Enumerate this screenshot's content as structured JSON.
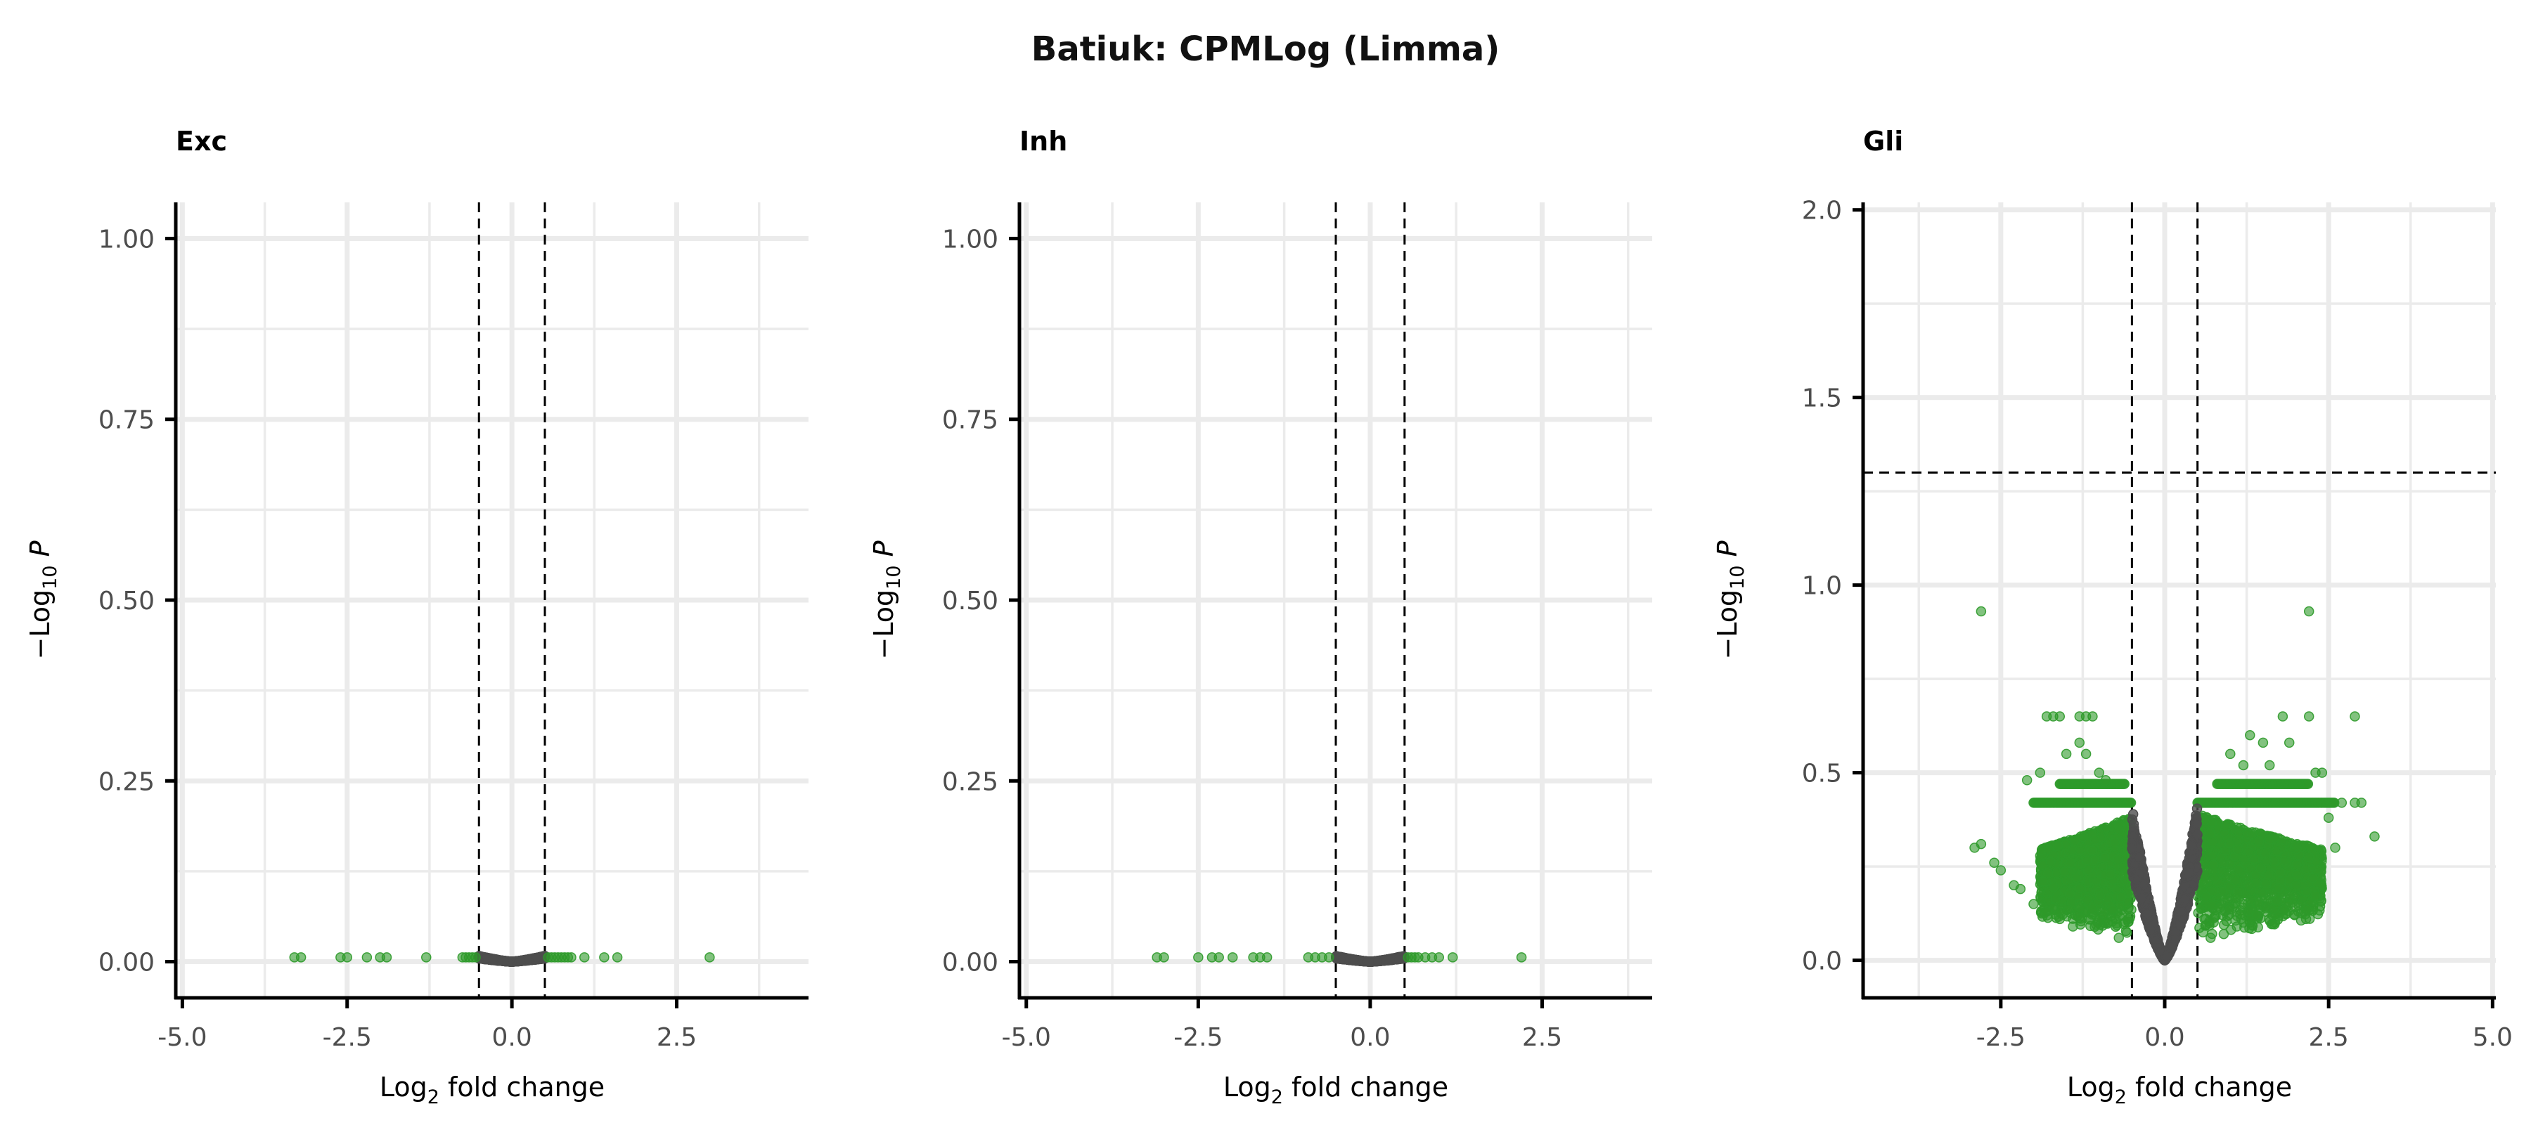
{
  "title": "Batiuk: CPMLog (Limma)",
  "colors": {
    "significant": "#2e9a2a",
    "nonsignificant": "#4d4d4d",
    "grid": "#ebebeb",
    "axis": "#000000"
  },
  "chart_data": [
    {
      "type": "scatter",
      "panel": "Exc",
      "xlabel_main": "Log",
      "xlabel_sub": "2",
      "xlabel_tail": " fold change",
      "ylabel_main": "−Log",
      "ylabel_sub": "10",
      "ylabel_tail": " P",
      "xlim": [
        -5.1,
        4.5
      ],
      "ylim": [
        -0.05,
        1.05
      ],
      "xticks": [
        -5.0,
        -2.5,
        0.0,
        2.5
      ],
      "xtick_labels": [
        "-5.0",
        "-2.5",
        "0.0",
        "2.5"
      ],
      "yticks": [
        0.0,
        0.25,
        0.5,
        0.75,
        1.0
      ],
      "ytick_labels": [
        "0.00",
        "0.25",
        "0.50",
        "0.75",
        "1.00"
      ],
      "fc_cutoff": [
        -0.5,
        0.5
      ],
      "p_cutoff": 1.3,
      "sig_points": [
        [
          -3.3,
          0.006
        ],
        [
          -3.2,
          0.006
        ],
        [
          -2.6,
          0.006
        ],
        [
          -2.5,
          0.006
        ],
        [
          -2.2,
          0.006
        ],
        [
          -2.0,
          0.006
        ],
        [
          -1.9,
          0.006
        ],
        [
          -1.3,
          0.006
        ],
        [
          -0.75,
          0.006
        ],
        [
          -0.7,
          0.006
        ],
        [
          -0.65,
          0.006
        ],
        [
          -0.6,
          0.006
        ],
        [
          -0.55,
          0.006
        ],
        [
          0.55,
          0.006
        ],
        [
          0.6,
          0.006
        ],
        [
          0.65,
          0.006
        ],
        [
          0.7,
          0.006
        ],
        [
          0.75,
          0.006
        ],
        [
          0.8,
          0.006
        ],
        [
          0.85,
          0.006
        ],
        [
          0.9,
          0.006
        ],
        [
          1.1,
          0.006
        ],
        [
          1.4,
          0.006
        ],
        [
          1.6,
          0.006
        ],
        [
          3.0,
          0.006
        ]
      ],
      "ns_curve": {
        "x_range": [
          -0.5,
          0.5
        ],
        "y_at_zero": 0.0,
        "y_at_edge": 0.008
      }
    },
    {
      "type": "scatter",
      "panel": "Inh",
      "xlabel_main": "Log",
      "xlabel_sub": "2",
      "xlabel_tail": " fold change",
      "ylabel_main": "−Log",
      "ylabel_sub": "10",
      "ylabel_tail": " P",
      "xlim": [
        -5.1,
        4.1
      ],
      "ylim": [
        -0.05,
        1.05
      ],
      "xticks": [
        -5.0,
        -2.5,
        0.0,
        2.5
      ],
      "xtick_labels": [
        "-5.0",
        "-2.5",
        "0.0",
        "2.5"
      ],
      "yticks": [
        0.0,
        0.25,
        0.5,
        0.75,
        1.0
      ],
      "ytick_labels": [
        "0.00",
        "0.25",
        "0.50",
        "0.75",
        "1.00"
      ],
      "fc_cutoff": [
        -0.5,
        0.5
      ],
      "p_cutoff": 1.3,
      "sig_points": [
        [
          -3.1,
          0.006
        ],
        [
          -3.0,
          0.006
        ],
        [
          -2.5,
          0.006
        ],
        [
          -2.3,
          0.006
        ],
        [
          -2.2,
          0.006
        ],
        [
          -2.0,
          0.006
        ],
        [
          -1.7,
          0.006
        ],
        [
          -1.6,
          0.006
        ],
        [
          -1.5,
          0.006
        ],
        [
          -0.9,
          0.006
        ],
        [
          -0.8,
          0.006
        ],
        [
          -0.7,
          0.006
        ],
        [
          -0.6,
          0.006
        ],
        [
          0.55,
          0.006
        ],
        [
          0.6,
          0.006
        ],
        [
          0.65,
          0.006
        ],
        [
          0.7,
          0.006
        ],
        [
          0.8,
          0.006
        ],
        [
          0.9,
          0.006
        ],
        [
          1.0,
          0.006
        ],
        [
          1.2,
          0.006
        ],
        [
          2.2,
          0.006
        ]
      ],
      "ns_curve": {
        "x_range": [
          -0.5,
          0.5
        ],
        "y_at_zero": 0.0,
        "y_at_edge": 0.008
      }
    },
    {
      "type": "scatter",
      "panel": "Gli",
      "xlabel_main": "Log",
      "xlabel_sub": "2",
      "xlabel_tail": " fold change",
      "ylabel_main": "−Log",
      "ylabel_sub": "10",
      "ylabel_tail": " P",
      "xlim": [
        -4.6,
        5.05
      ],
      "ylim": [
        -0.1,
        2.02
      ],
      "xticks": [
        -2.5,
        0.0,
        2.5,
        5.0
      ],
      "xtick_labels": [
        "-2.5",
        "0.0",
        "2.5",
        "5.0"
      ],
      "yticks": [
        0.0,
        0.5,
        1.0,
        1.5,
        2.0
      ],
      "ytick_labels": [
        "0.0",
        "0.5",
        "1.0",
        "1.5",
        "2.0"
      ],
      "fc_cutoff": [
        -0.5,
        0.5
      ],
      "p_cutoff": 1.3,
      "sig_points": [
        [
          -2.8,
          0.93
        ],
        [
          2.2,
          0.93
        ],
        [
          -2.9,
          0.3
        ],
        [
          -2.8,
          0.31
        ],
        [
          -2.6,
          0.26
        ],
        [
          -2.5,
          0.24
        ],
        [
          -2.3,
          0.2
        ],
        [
          -2.2,
          0.19
        ],
        [
          -2.0,
          0.15
        ],
        [
          -1.8,
          0.13
        ],
        [
          -1.6,
          0.11
        ],
        [
          -1.4,
          0.09
        ],
        [
          -2.1,
          0.48
        ],
        [
          -1.9,
          0.5
        ],
        [
          -1.8,
          0.65
        ],
        [
          -1.7,
          0.65
        ],
        [
          -1.6,
          0.65
        ],
        [
          -1.3,
          0.65
        ],
        [
          -1.2,
          0.65
        ],
        [
          -1.1,
          0.65
        ],
        [
          -1.5,
          0.55
        ],
        [
          -1.0,
          0.5
        ],
        [
          -0.9,
          0.48
        ],
        [
          -1.3,
          0.58
        ],
        [
          -1.2,
          0.55
        ],
        [
          1.8,
          0.65
        ],
        [
          2.2,
          0.65
        ],
        [
          2.9,
          0.65
        ],
        [
          1.3,
          0.6
        ],
        [
          1.5,
          0.58
        ],
        [
          1.9,
          0.58
        ],
        [
          1.0,
          0.55
        ],
        [
          1.2,
          0.52
        ],
        [
          1.6,
          0.52
        ],
        [
          2.3,
          0.5
        ],
        [
          2.4,
          0.5
        ],
        [
          2.7,
          0.42
        ],
        [
          2.9,
          0.42
        ],
        [
          3.0,
          0.42
        ],
        [
          2.5,
          0.38
        ],
        [
          3.2,
          0.33
        ],
        [
          2.6,
          0.3
        ],
        [
          2.0,
          0.2
        ],
        [
          1.7,
          0.16
        ],
        [
          1.4,
          0.12
        ],
        [
          1.1,
          0.09
        ],
        [
          0.9,
          0.07
        ],
        [
          -0.7,
          0.06
        ],
        [
          0.7,
          0.06
        ]
      ],
      "sig_bands": [
        {
          "x_from": -2.0,
          "x_to": -0.5,
          "y": 0.42
        },
        {
          "x_from": -1.6,
          "x_to": -0.6,
          "y": 0.47
        },
        {
          "x_from": 0.5,
          "x_to": 2.6,
          "y": 0.42
        },
        {
          "x_from": 0.8,
          "x_to": 2.2,
          "y": 0.47
        }
      ],
      "sig_clouds": [
        {
          "x_from": -1.9,
          "x_to": -0.5,
          "y_max": 0.42,
          "y_min_at_edge": 0.05
        },
        {
          "x_from": 0.5,
          "x_to": 2.4,
          "y_max": 0.42,
          "y_min_at_edge": 0.05
        }
      ],
      "ns_curve": {
        "x_range": [
          -0.5,
          0.5
        ],
        "y_at_zero": 0.0,
        "y_at_edge": 0.42
      }
    }
  ]
}
